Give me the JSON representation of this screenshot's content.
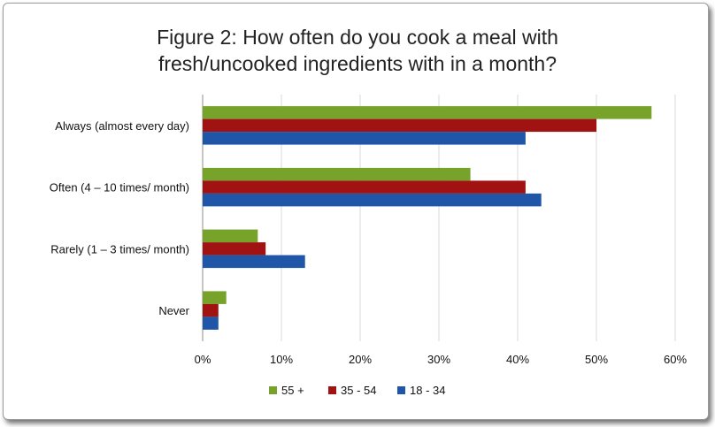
{
  "chart_data": {
    "type": "bar",
    "orientation": "horizontal",
    "title": [
      "Figure 2: How often do you cook a meal with",
      "fresh/uncooked  ingredients with in a month?"
    ],
    "categories": [
      "Always (almost every day)",
      "Often (4 – 10 times/ month)",
      "Rarely (1 – 3 times/ month)",
      "Never"
    ],
    "series": [
      {
        "name": "55 +",
        "color": "#77a32b",
        "values": [
          57,
          34,
          7,
          3
        ]
      },
      {
        "name": "35 - 54",
        "color": "#a11313",
        "values": [
          50,
          41,
          8,
          2
        ]
      },
      {
        "name": "18 - 34",
        "color": "#1f56a8",
        "values": [
          41,
          43,
          13,
          2
        ]
      }
    ],
    "xlim": [
      0,
      60
    ],
    "xticks": [
      "0%",
      "10%",
      "20%",
      "30%",
      "40%",
      "50%",
      "60%"
    ],
    "grid": true,
    "legend_position": "bottom"
  }
}
